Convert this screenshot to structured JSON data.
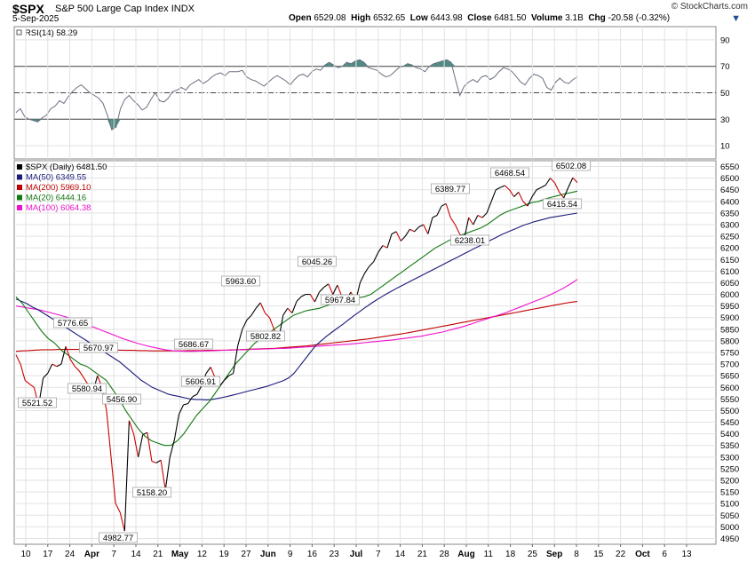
{
  "header": {
    "symbol": "$SPX",
    "name": "S&P 500 Large Cap Index",
    "exchange": "INDX",
    "date": "5-Sep-2025",
    "brand": "© StockCharts.com",
    "stats": [
      {
        "label": "Open",
        "value": "6529.08"
      },
      {
        "label": "High",
        "value": "6532.65"
      },
      {
        "label": "Low",
        "value": "6443.98"
      },
      {
        "label": "Close",
        "value": "6481.50"
      },
      {
        "label": "Volume",
        "value": "3.1B"
      },
      {
        "label": "Chg",
        "value": "-20.58 (-0.32%)"
      }
    ],
    "dropdown_icon": "triangle-down-icon"
  },
  "colors": {
    "price": "#000000",
    "price_down": "#cc0000",
    "ma50": "#1a1a7a",
    "ma200": "#c00000",
    "ma20": "#117711",
    "ma100": "#ee11cc",
    "rsi": "#6a7080",
    "rsi_fill": "#4f8a82",
    "grid": "#e2e2e2"
  },
  "chart_data": [
    {
      "type": "line",
      "title": "RSI(14) 58.29",
      "ylim": [
        0,
        100
      ],
      "yticks": [
        10,
        30,
        50,
        70,
        90
      ],
      "reference_lines": [
        30,
        50,
        70
      ],
      "y": [
        35,
        38,
        32,
        30,
        29,
        28,
        31,
        33,
        38,
        40,
        44,
        42,
        47,
        51,
        54,
        56,
        53,
        50,
        48,
        46,
        42,
        33,
        22,
        24,
        38,
        45,
        48,
        44,
        41,
        37,
        39,
        45,
        50,
        44,
        43,
        46,
        51,
        52,
        54,
        52,
        56,
        58,
        60,
        57,
        59,
        62,
        64,
        65,
        63,
        66,
        66,
        66,
        67,
        62,
        60,
        59,
        57,
        55,
        58,
        61,
        63,
        61,
        59,
        56,
        60,
        63,
        64,
        62,
        66,
        68,
        67,
        71,
        73,
        71,
        69,
        70,
        73,
        72,
        74,
        75,
        73,
        69,
        68,
        67,
        64,
        62,
        63,
        66,
        69,
        70,
        72,
        71,
        69,
        68,
        66,
        70,
        72,
        73,
        74,
        75,
        73,
        60,
        48,
        55,
        58,
        60,
        58,
        62,
        63,
        60,
        62,
        66,
        69,
        68,
        66,
        62,
        58,
        56,
        61,
        64,
        63,
        61,
        54,
        52,
        58,
        61,
        58,
        57,
        60,
        62
      ]
    },
    {
      "type": "line",
      "title": "$SPX (Daily) 6481.50",
      "ylim": [
        4925,
        6575
      ],
      "yticks": [
        4950,
        5000,
        5050,
        5100,
        5150,
        5200,
        5250,
        5300,
        5350,
        5400,
        5450,
        5500,
        5550,
        5600,
        5650,
        5700,
        5750,
        5800,
        5850,
        5900,
        5950,
        6000,
        6050,
        6100,
        6150,
        6200,
        6250,
        6300,
        6350,
        6400,
        6450,
        6500,
        6550
      ],
      "x_ticks": [
        {
          "label": "10",
          "bold": false
        },
        {
          "label": "17",
          "bold": false
        },
        {
          "label": "24",
          "bold": false
        },
        {
          "label": "Apr",
          "bold": true
        },
        {
          "label": "7",
          "bold": false
        },
        {
          "label": "14",
          "bold": false
        },
        {
          "label": "21",
          "bold": false
        },
        {
          "label": "May",
          "bold": true
        },
        {
          "label": "12",
          "bold": false
        },
        {
          "label": "19",
          "bold": false
        },
        {
          "label": "27",
          "bold": false
        },
        {
          "label": "Jun",
          "bold": true
        },
        {
          "label": "9",
          "bold": false
        },
        {
          "label": "16",
          "bold": false
        },
        {
          "label": "23",
          "bold": false
        },
        {
          "label": "Jul",
          "bold": true
        },
        {
          "label": "7",
          "bold": false
        },
        {
          "label": "14",
          "bold": false
        },
        {
          "label": "21",
          "bold": false
        },
        {
          "label": "28",
          "bold": false
        },
        {
          "label": "Aug",
          "bold": true
        },
        {
          "label": "11",
          "bold": false
        },
        {
          "label": "18",
          "bold": false
        },
        {
          "label": "25",
          "bold": false
        },
        {
          "label": "Sep",
          "bold": true
        },
        {
          "label": "8",
          "bold": false
        },
        {
          "label": "15",
          "bold": false
        },
        {
          "label": "22",
          "bold": false
        },
        {
          "label": "Oct",
          "bold": true
        },
        {
          "label": "6",
          "bold": false
        },
        {
          "label": "13",
          "bold": false
        }
      ],
      "series": [
        {
          "name": "$SPX (Daily) 6481.50",
          "key": "price",
          "values": [
            5740,
            5700,
            5630,
            5614,
            5600,
            5521,
            5640,
            5660,
            5700,
            5690,
            5700,
            5776,
            5720,
            5690,
            5670,
            5640,
            5610,
            5580,
            5650,
            5600,
            5500,
            5300,
            5100,
            5062,
            4982,
            5457,
            5400,
            5300,
            5396,
            5406,
            5282,
            5275,
            5287,
            5158,
            5300,
            5375,
            5484,
            5525,
            5530,
            5560,
            5570,
            5607,
            5660,
            5687,
            5640,
            5606,
            5630,
            5650,
            5660,
            5780,
            5850,
            5890,
            5910,
            5940,
            5964,
            5920,
            5900,
            5850,
            5803,
            5910,
            5940,
            5920,
            5970,
            5990,
            6000,
            6000,
            5968,
            6010,
            6030,
            6045,
            6000,
            6040,
            5990,
            5980,
            6010,
            5967,
            6050,
            6090,
            6120,
            6140,
            6180,
            6210,
            6200,
            6260,
            6270,
            6230,
            6250,
            6280,
            6270,
            6290,
            6300,
            6260,
            6330,
            6340,
            6380,
            6390,
            6330,
            6300,
            6260,
            6238,
            6330,
            6300,
            6340,
            6330,
            6350,
            6400,
            6450,
            6460,
            6468,
            6450,
            6420,
            6440,
            6400,
            6380,
            6420,
            6450,
            6460,
            6470,
            6500,
            6480,
            6440,
            6415,
            6460,
            6502,
            6481
          ]
        },
        {
          "name": "MA(50) 6349.55",
          "key": "ma50",
          "values": [
            5980,
            5970,
            5960,
            5945,
            5935,
            5920,
            5905,
            5890,
            5875,
            5860,
            5845,
            5830,
            5815,
            5800,
            5785,
            5770,
            5755,
            5740,
            5725,
            5710,
            5690,
            5670,
            5650,
            5630,
            5615,
            5600,
            5590,
            5580,
            5570,
            5565,
            5560,
            5555,
            5550,
            5548,
            5547,
            5546,
            5548,
            5552,
            5557,
            5562,
            5568,
            5574,
            5580,
            5586,
            5592,
            5598,
            5604,
            5612,
            5620,
            5628,
            5640,
            5660,
            5690,
            5720,
            5750,
            5780,
            5800,
            5820,
            5838,
            5855,
            5872,
            5890,
            5908,
            5925,
            5942,
            5958,
            5974,
            5988,
            6002,
            6015,
            6028,
            6040,
            6052,
            6064,
            6076,
            6088,
            6100,
            6112,
            6124,
            6136,
            6148,
            6160,
            6172,
            6184,
            6196,
            6208,
            6220,
            6232,
            6244,
            6256,
            6266,
            6276,
            6286,
            6296,
            6304,
            6312,
            6318,
            6324,
            6330,
            6334,
            6338,
            6342,
            6346,
            6349.55
          ]
        },
        {
          "name": "MA(200) 5969.10",
          "key": "ma200",
          "values": [
            5755,
            5757,
            5758,
            5760,
            5761,
            5762,
            5762,
            5763,
            5763,
            5763,
            5763,
            5763,
            5762,
            5762,
            5761,
            5761,
            5760,
            5760,
            5759,
            5759,
            5758,
            5758,
            5757,
            5757,
            5757,
            5757,
            5757,
            5757,
            5758,
            5758,
            5758,
            5759,
            5759,
            5760,
            5760,
            5761,
            5762,
            5763,
            5764,
            5765,
            5766,
            5767,
            5768,
            5770,
            5772,
            5774,
            5776,
            5778,
            5781,
            5784,
            5787,
            5790,
            5793,
            5796,
            5799,
            5802,
            5805,
            5808,
            5812,
            5816,
            5820,
            5824,
            5828,
            5832,
            5837,
            5842,
            5847,
            5852,
            5857,
            5862,
            5867,
            5872,
            5877,
            5882,
            5887,
            5892,
            5897,
            5902,
            5907,
            5912,
            5917,
            5922,
            5927,
            5932,
            5937,
            5942,
            5947,
            5952,
            5957,
            5962,
            5966,
            5969.1
          ]
        },
        {
          "name": "MA(20) 6444.16",
          "key": "ma20",
          "values": [
            5990,
            5960,
            5920,
            5880,
            5840,
            5810,
            5790,
            5760,
            5740,
            5720,
            5700,
            5690,
            5670,
            5650,
            5630,
            5590,
            5550,
            5500,
            5460,
            5420,
            5390,
            5370,
            5360,
            5350,
            5350,
            5370,
            5400,
            5440,
            5480,
            5510,
            5540,
            5580,
            5620,
            5660,
            5700,
            5730,
            5760,
            5790,
            5810,
            5830,
            5850,
            5870,
            5890,
            5910,
            5920,
            5930,
            5935,
            5940,
            5950,
            5960,
            5970,
            5975,
            5980,
            5985,
            5990,
            6000,
            6020,
            6040,
            6060,
            6080,
            6100,
            6120,
            6140,
            6160,
            6180,
            6200,
            6215,
            6230,
            6245,
            6255,
            6265,
            6275,
            6285,
            6300,
            6320,
            6340,
            6355,
            6365,
            6375,
            6385,
            6395,
            6400,
            6410,
            6418,
            6425,
            6432,
            6438,
            6444.16
          ]
        },
        {
          "name": "MA(100) 6064.38",
          "key": "ma100",
          "values": [
            5950,
            5945,
            5940,
            5935,
            5928,
            5920,
            5912,
            5903,
            5893,
            5882,
            5870,
            5858,
            5846,
            5834,
            5822,
            5810,
            5800,
            5790,
            5782,
            5774,
            5768,
            5762,
            5758,
            5756,
            5755,
            5755,
            5756,
            5757,
            5758,
            5759,
            5760,
            5761,
            5762,
            5763,
            5764,
            5765,
            5766,
            5767,
            5768,
            5770,
            5772,
            5774,
            5776,
            5778,
            5780,
            5782,
            5784,
            5786,
            5789,
            5792,
            5795,
            5798,
            5801,
            5804,
            5808,
            5812,
            5816,
            5820,
            5826,
            5832,
            5838,
            5846,
            5854,
            5862,
            5872,
            5882,
            5892,
            5902,
            5912,
            5922,
            5934,
            5946,
            5958,
            5970,
            5982,
            5996,
            6010,
            6026,
            6044,
            6064.38
          ]
        }
      ],
      "annotations": [
        {
          "value": 5521.52,
          "label": "5521.52"
        },
        {
          "value": 5776.65,
          "label": "5776.65"
        },
        {
          "value": 5670.97,
          "label": "5670.97"
        },
        {
          "value": 5580.94,
          "label": "5580.94"
        },
        {
          "value": 5456.9,
          "label": "5456.90"
        },
        {
          "value": 4982.77,
          "label": "4982.77"
        },
        {
          "value": 5158.2,
          "label": "5158.20"
        },
        {
          "value": 5686.67,
          "label": "5686.67"
        },
        {
          "value": 5606.91,
          "label": "5606.91"
        },
        {
          "value": 5963.6,
          "label": "5963.60"
        },
        {
          "value": 5802.82,
          "label": "5802.82"
        },
        {
          "value": 6045.26,
          "label": "6045.26"
        },
        {
          "value": 5967.84,
          "label": "5967.84"
        },
        {
          "value": 6389.77,
          "label": "6389.77"
        },
        {
          "value": 6238.01,
          "label": "6238.01"
        },
        {
          "value": 6468.54,
          "label": "6468.54"
        },
        {
          "value": 6502.08,
          "label": "6502.08"
        },
        {
          "value": 6415.54,
          "label": "6415.54"
        }
      ]
    }
  ]
}
